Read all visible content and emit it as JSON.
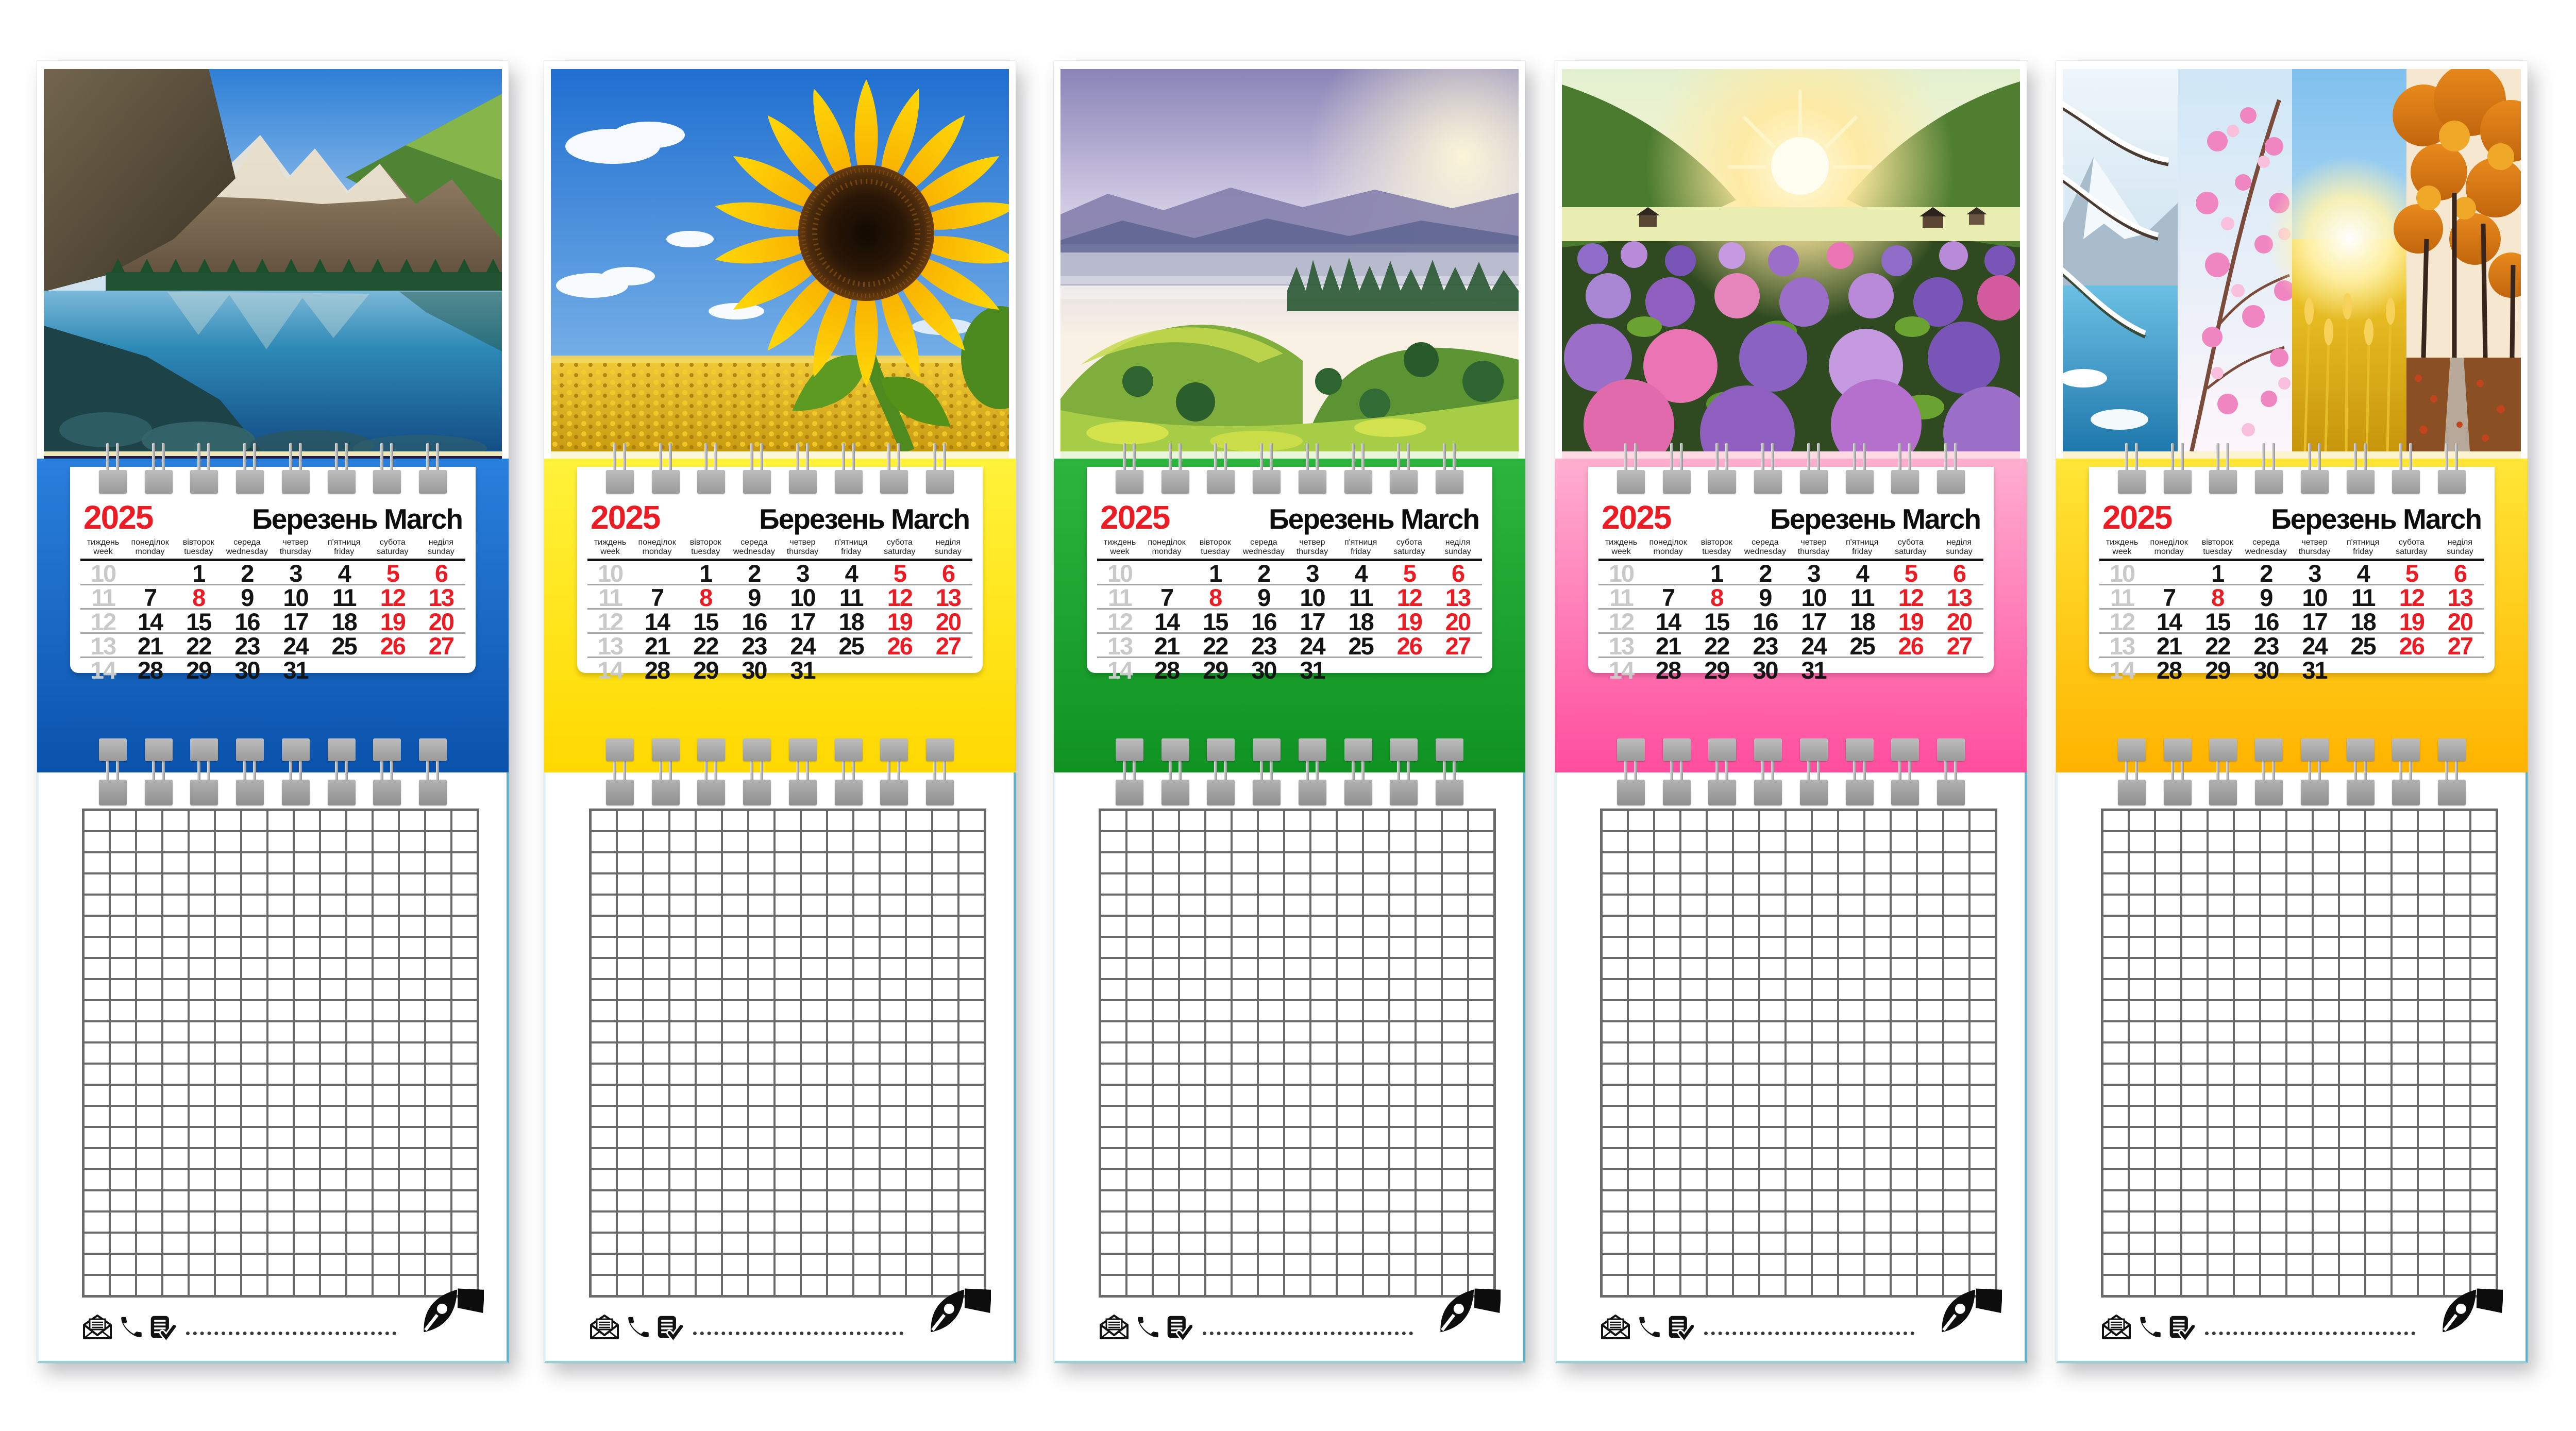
{
  "page": {
    "description": "Five mini spiral-bound desk calendars for March 2025 with photo headers, colored bands and squared notepads",
    "background": "#ffffff"
  },
  "month": {
    "year": "2025",
    "month_uk": "Березень",
    "month_en": "March",
    "week_label": [
      "тиждень",
      "week"
    ],
    "dow": [
      [
        "понеділок",
        "monday"
      ],
      [
        "вівторок",
        "tuesday"
      ],
      [
        "середа",
        "wednesday"
      ],
      [
        "четвер",
        "thursday"
      ],
      [
        "п'ятниця",
        "friday"
      ],
      [
        "субота",
        "saturday"
      ],
      [
        "неділя",
        "sunday"
      ]
    ],
    "week_numbers": [
      "10",
      "11",
      "12",
      "13",
      "14"
    ],
    "weeks": [
      [
        "",
        "1",
        "2",
        "3",
        "4",
        "5",
        "6"
      ],
      [
        "7",
        "8",
        "9",
        "10",
        "11",
        "12",
        "13"
      ],
      [
        "14",
        "15",
        "16",
        "17",
        "18",
        "19",
        "20"
      ],
      [
        "21",
        "22",
        "23",
        "24",
        "25",
        "26",
        "27"
      ],
      [
        "28",
        "29",
        "30",
        "31",
        "",
        "",
        ""
      ]
    ],
    "holidays": [
      "8"
    ],
    "colors": {
      "red": "#ec1c24",
      "week_number_gray": "#c9c9c9",
      "text": "#141414",
      "separator": "#a6a6a6"
    }
  },
  "binding": {
    "clips_per_row": 8,
    "clip_color": "#a6a6a6",
    "wire_color": "#c4c4c4"
  },
  "calendars": [
    {
      "name": "mountain-lake",
      "photo_alt": "Turquoise mountain lake with snowy peaks and forest reflection",
      "band_top": "#2a80dd",
      "band_bottom": "#0a52ac",
      "edge_strip": "#efe7b8",
      "edge_line": "#232150"
    },
    {
      "name": "sunflower",
      "photo_alt": "Large sunflower against blue sky above a sunflower field",
      "band_top": "#fff23a",
      "band_bottom": "#ffd800",
      "edge_strip": "#fbf7d8",
      "edge_line": "#fbf7d8"
    },
    {
      "name": "green-hills",
      "photo_alt": "Sunlit green hills with morning mist and distant mountains",
      "band_top": "#2cb53e",
      "band_bottom": "#0f9222",
      "edge_strip": "#eaf5dc",
      "edge_line": "#eaf5dc"
    },
    {
      "name": "hydrangeas",
      "photo_alt": "Field of purple and pink hydrangeas at sunrise between green mountains",
      "band_top": "#ffaed0",
      "band_bottom": "#ff4d9e",
      "edge_strip": "#ffd9e4",
      "edge_line": "#ffd9e4"
    },
    {
      "name": "four-seasons",
      "photo_alt": "Four seasons collage: winter lake, spring blossom, summer wheat, autumn forest",
      "band_top": "#ffe637",
      "band_bottom": "#ffb300",
      "edge_strip": "#fdf3cf",
      "edge_line": "#fdf3cf"
    }
  ],
  "notepad": {
    "grid_columns": 15,
    "grid_rows": 23,
    "footer_icons": [
      "envelope-icon",
      "phone-icon",
      "notes-check-icon"
    ],
    "pen_icon": "pen-nib-icon"
  }
}
